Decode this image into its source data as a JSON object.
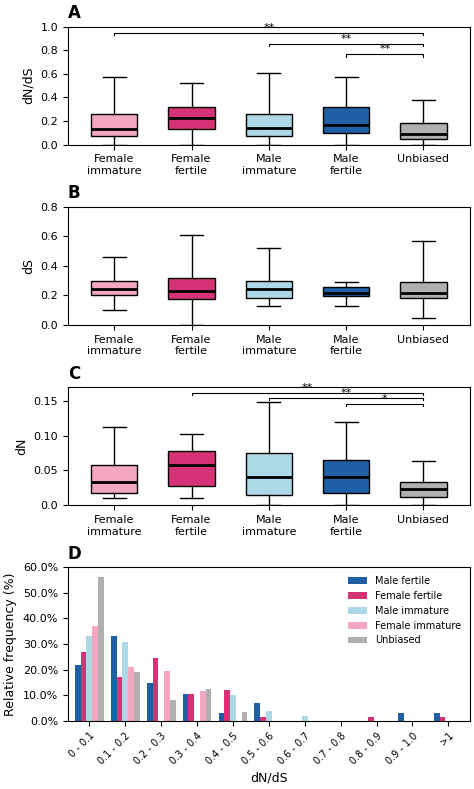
{
  "chart_data": [
    {
      "type": "box",
      "title": "A",
      "ylabel": "dN/dS",
      "categories": [
        "Female\nimmature",
        "Female\nfertile",
        "Male\nimmature",
        "Male\nfertile",
        "Unbiased"
      ],
      "colors": [
        "#F4A8C0",
        "#D63278",
        "#ADD8E6",
        "#1F5FA6",
        "#B0B0B0"
      ],
      "boxes": [
        {
          "q1": 0.07,
          "median": 0.13,
          "q3": 0.26,
          "whislo": 0.0,
          "whishi": 0.57
        },
        {
          "q1": 0.13,
          "median": 0.23,
          "q3": 0.32,
          "whislo": 0.0,
          "whishi": 0.52
        },
        {
          "q1": 0.07,
          "median": 0.14,
          "q3": 0.26,
          "whislo": 0.0,
          "whishi": 0.61
        },
        {
          "q1": 0.1,
          "median": 0.17,
          "q3": 0.32,
          "whislo": 0.0,
          "whishi": 0.57
        },
        {
          "q1": 0.05,
          "median": 0.09,
          "q3": 0.18,
          "whislo": 0.0,
          "whishi": 0.38
        }
      ],
      "ylim": [
        0,
        1.0
      ],
      "yticks": [
        0.0,
        0.2,
        0.4,
        0.6,
        0.8,
        1.0
      ],
      "annotations": [
        {
          "from": "Female\nimmature",
          "to": "Unbiased",
          "y": 0.945,
          "label": "**"
        },
        {
          "from": "Male\nimmature",
          "to": "Unbiased",
          "y": 0.855,
          "label": "**"
        },
        {
          "from": "Male\nfertile",
          "to": "Unbiased",
          "y": 0.765,
          "label": "**"
        }
      ]
    },
    {
      "type": "box",
      "title": "B",
      "ylabel": "dS",
      "categories": [
        "Female\nimmature",
        "Female\nfertile",
        "Male\nimmature",
        "Male\nfertile",
        "Unbiased"
      ],
      "colors": [
        "#F4A8C0",
        "#D63278",
        "#ADD8E6",
        "#1F5FA6",
        "#B0B0B0"
      ],
      "boxes": [
        {
          "q1": 0.2,
          "median": 0.245,
          "q3": 0.295,
          "whislo": 0.1,
          "whishi": 0.46
        },
        {
          "q1": 0.175,
          "median": 0.23,
          "q3": 0.315,
          "whislo": 0.0,
          "whishi": 0.61
        },
        {
          "q1": 0.185,
          "median": 0.245,
          "q3": 0.3,
          "whislo": 0.13,
          "whishi": 0.52
        },
        {
          "q1": 0.195,
          "median": 0.215,
          "q3": 0.26,
          "whislo": 0.13,
          "whishi": 0.29
        },
        {
          "q1": 0.185,
          "median": 0.215,
          "q3": 0.29,
          "whislo": 0.05,
          "whishi": 0.57
        }
      ],
      "ylim": [
        0,
        0.8
      ],
      "yticks": [
        0.0,
        0.2,
        0.4,
        0.6,
        0.8
      ]
    },
    {
      "type": "box",
      "title": "C",
      "ylabel": "dN",
      "categories": [
        "Female\nimmature",
        "Female\nfertile",
        "Male\nimmature",
        "Male\nfertile",
        "Unbiased"
      ],
      "colors": [
        "#F4A8C0",
        "#D63278",
        "#ADD8E6",
        "#1F5FA6",
        "#B0B0B0"
      ],
      "boxes": [
        {
          "q1": 0.018,
          "median": 0.033,
          "q3": 0.058,
          "whislo": 0.01,
          "whishi": 0.112
        },
        {
          "q1": 0.028,
          "median": 0.058,
          "q3": 0.078,
          "whislo": 0.01,
          "whishi": 0.103
        },
        {
          "q1": 0.015,
          "median": 0.04,
          "q3": 0.075,
          "whislo": 0.0,
          "whishi": 0.148
        },
        {
          "q1": 0.018,
          "median": 0.04,
          "q3": 0.065,
          "whislo": 0.0,
          "whishi": 0.12
        },
        {
          "q1": 0.012,
          "median": 0.023,
          "q3": 0.033,
          "whislo": 0.0,
          "whishi": 0.063
        }
      ],
      "ylim": [
        0,
        0.17
      ],
      "yticks": [
        0.0,
        0.05,
        {
          "value": 0.1,
          "label": "0.10"
        },
        0.15
      ],
      "annotations": [
        {
          "from": "Female\nfertile",
          "to": "Unbiased",
          "y": 0.162,
          "label": "**"
        },
        {
          "from": "Male\nimmature",
          "to": "Unbiased",
          "y": 0.154,
          "label": "**"
        },
        {
          "from": "Male\nfertile",
          "to": "Unbiased",
          "y": 0.146,
          "label": "*"
        }
      ]
    },
    {
      "type": "bar",
      "title": "D",
      "xlabel": "dN/dS",
      "ylabel": "Relative frequency (%)",
      "categories": [
        "0 - 0.1",
        "0.1 - 0.2",
        "0.2 - 0.3",
        "0.3 - 0.4",
        "0.4 - 0.5",
        "0.5 - 0.6",
        "0.6 - 0.7",
        "0.7 - 0.8",
        "0.8 - 0.9",
        "0.9 - 1.0",
        ">1"
      ],
      "series": [
        {
          "name": "Male fertile",
          "color": "#1F5FA6",
          "values": [
            22.0,
            33.0,
            15.0,
            10.5,
            3.0,
            7.0,
            0.0,
            0.0,
            0.0,
            3.0,
            3.0
          ]
        },
        {
          "name": "Female fertile",
          "color": "#D63278",
          "values": [
            27.0,
            17.0,
            24.5,
            10.5,
            12.0,
            1.5,
            0.0,
            0.0,
            1.5,
            0.0,
            1.5
          ]
        },
        {
          "name": "Male immature",
          "color": "#ADD8E6",
          "values": [
            33.0,
            31.0,
            0.0,
            0.0,
            10.0,
            4.0,
            2.0,
            0.0,
            0.0,
            0.0,
            0.0
          ]
        },
        {
          "name": "Female immature",
          "color": "#F4A8C0",
          "values": [
            37.0,
            21.0,
            19.5,
            11.5,
            0.0,
            0.0,
            0.0,
            0.0,
            0.0,
            0.0,
            0.0
          ]
        },
        {
          "name": "Unbiased",
          "color": "#B0B0B0",
          "values": [
            56.0,
            19.0,
            8.0,
            12.5,
            3.5,
            0.0,
            0.0,
            0.0,
            0.0,
            0.0,
            0.0
          ]
        }
      ],
      "ylim": [
        0,
        60
      ],
      "yticks": [
        {
          "value": 0,
          "label": "0.0%"
        },
        {
          "value": 10,
          "label": "10.0%"
        },
        {
          "value": 20,
          "label": "20.0%"
        },
        {
          "value": 30,
          "label": "30.0%"
        },
        {
          "value": 40,
          "label": "40.0%"
        },
        {
          "value": 50,
          "label": "50.0%"
        },
        {
          "value": 60,
          "label": "60.0%"
        }
      ],
      "legend": "upper right"
    }
  ]
}
